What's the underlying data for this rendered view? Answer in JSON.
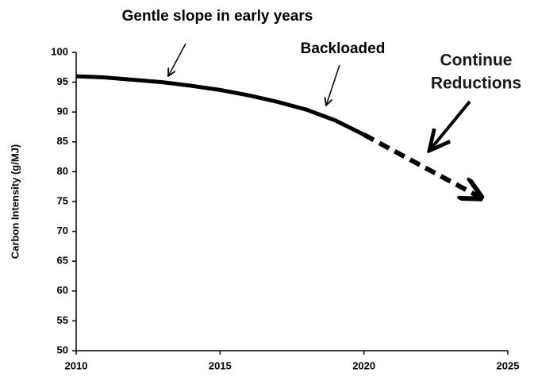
{
  "chart_data": {
    "type": "line",
    "y_label": "Carbon Intensity (g/MJ)",
    "x": [
      2010,
      2011,
      2012,
      2013,
      2014,
      2015,
      2016,
      2017,
      2018,
      2019,
      2020,
      2021,
      2022,
      2023,
      2024
    ],
    "series": [
      {
        "color": "#000000",
        "style": "solid",
        "values": [
          96,
          95.8,
          95.4,
          95,
          94.4,
          93.7,
          92.8,
          91.7,
          90.4,
          88.6,
          86.2,
          null,
          null,
          null,
          null
        ]
      },
      {
        "color": "#000000",
        "style": "dashed",
        "values": [
          null,
          null,
          null,
          null,
          null,
          null,
          null,
          null,
          null,
          null,
          86.2,
          83.6,
          81,
          78.4,
          75.8
        ]
      }
    ],
    "xlim": [
      2010,
      2025
    ],
    "xticks": [
      2010,
      2015,
      2020,
      2025
    ],
    "ylim": [
      50,
      100
    ],
    "yticks": [
      50,
      55,
      60,
      65,
      70,
      75,
      80,
      85,
      90,
      95,
      100
    ],
    "annotations": [
      {
        "text": "Gentle slope in early years"
      },
      {
        "text": "Backloaded"
      },
      {
        "lines": [
          "Continue",
          "Reductions"
        ]
      }
    ]
  }
}
